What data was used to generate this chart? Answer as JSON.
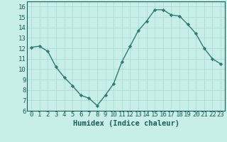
{
  "x": [
    0,
    1,
    2,
    3,
    4,
    5,
    6,
    7,
    8,
    9,
    10,
    11,
    12,
    13,
    14,
    15,
    16,
    17,
    18,
    19,
    20,
    21,
    22,
    23
  ],
  "y": [
    12.1,
    12.2,
    11.7,
    10.2,
    9.2,
    8.4,
    7.5,
    7.2,
    6.5,
    7.5,
    8.6,
    10.7,
    12.2,
    13.7,
    14.6,
    15.7,
    15.7,
    15.2,
    15.1,
    14.3,
    13.4,
    12.0,
    11.0,
    10.5
  ],
  "line_color": "#2e7d6e",
  "marker": "D",
  "marker_size": 2.2,
  "bg_color": "#c8eee8",
  "grid_color": "#a8d8d0",
  "xlabel": "Humidex (Indice chaleur)",
  "xlim": [
    -0.5,
    23.5
  ],
  "ylim": [
    6,
    16.5
  ],
  "yticks": [
    6,
    7,
    8,
    9,
    10,
    11,
    12,
    13,
    14,
    15,
    16
  ],
  "xticks": [
    0,
    1,
    2,
    3,
    4,
    5,
    6,
    7,
    8,
    9,
    10,
    11,
    12,
    13,
    14,
    15,
    16,
    17,
    18,
    19,
    20,
    21,
    22,
    23
  ],
  "tick_color": "#1a5f54",
  "tick_fontsize": 6.5,
  "xlabel_fontsize": 7.5,
  "xlabel_fontweight": "bold",
  "linewidth": 1.0,
  "spine_color": "#1a5f54"
}
